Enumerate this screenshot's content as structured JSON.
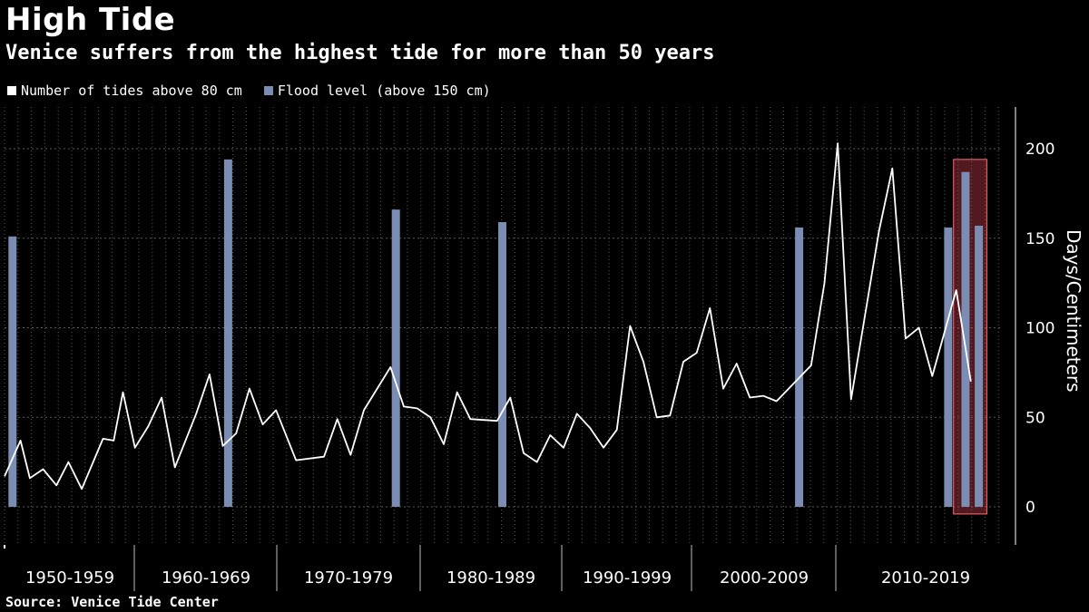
{
  "header": {
    "title": "High Tide",
    "subtitle": "Venice suffers from the highest tide for more than 50 years"
  },
  "legend": {
    "tides_label": "Number of tides above 80 cm",
    "flood_label": "Flood level (above 150 cm)"
  },
  "footer": {
    "source": "Source: Venice Tide Center"
  },
  "colors": {
    "background": "#000000",
    "line": "#ffffff",
    "bar": "#7b8db3",
    "highlight_fill": "#b5384a",
    "highlight_stroke": "#ff6f6f",
    "grid": "#5a5a5a"
  },
  "chart_data": {
    "type": "bar",
    "ylabel": "Days/Centimeters",
    "ylim": [
      -20,
      225
    ],
    "yticks": [
      0,
      50,
      100,
      150,
      200
    ],
    "decade_labels": [
      "1950-1959",
      "1960-1969",
      "1970-1979",
      "1980-1989",
      "1990-1999",
      "2000-2009",
      "2010-2019"
    ],
    "series": [
      {
        "name": "Number of tides above 80 cm",
        "type": "line",
        "points": [
          [
            1949.8,
            17
          ],
          [
            1951,
            37
          ],
          [
            1951.7,
            16
          ],
          [
            1952.7,
            21
          ],
          [
            1953.7,
            12
          ],
          [
            1954.6,
            25
          ],
          [
            1955.6,
            10
          ],
          [
            1957.2,
            38
          ],
          [
            1958,
            37
          ],
          [
            1958.7,
            64
          ],
          [
            1959.6,
            33
          ],
          [
            1960.6,
            45
          ],
          [
            1961.6,
            61
          ],
          [
            1962.6,
            22
          ],
          [
            1964.2,
            52
          ],
          [
            1965.2,
            74
          ],
          [
            1966.2,
            34
          ],
          [
            1967.2,
            41
          ],
          [
            1968.2,
            66
          ],
          [
            1969.2,
            46
          ],
          [
            1970.2,
            54
          ],
          [
            1971.7,
            26
          ],
          [
            1973.8,
            28
          ],
          [
            1974.8,
            49
          ],
          [
            1975.8,
            29
          ],
          [
            1976.8,
            54
          ],
          [
            1978.8,
            78
          ],
          [
            1979.8,
            56
          ],
          [
            1980.8,
            55
          ],
          [
            1981.8,
            50
          ],
          [
            1982.8,
            35
          ],
          [
            1983.8,
            64
          ],
          [
            1984.8,
            49
          ],
          [
            1986.8,
            48
          ],
          [
            1987.8,
            61
          ],
          [
            1988.8,
            30
          ],
          [
            1989.8,
            25
          ],
          [
            1990.8,
            40
          ],
          [
            1991.8,
            33
          ],
          [
            1992.8,
            52
          ],
          [
            1993.8,
            44
          ],
          [
            1994.8,
            33
          ],
          [
            1995.8,
            43
          ],
          [
            1996.8,
            101
          ],
          [
            1997.8,
            81
          ],
          [
            1998.8,
            50
          ],
          [
            1999.8,
            51
          ],
          [
            2000.8,
            81
          ],
          [
            2001.8,
            86
          ],
          [
            2002.8,
            111
          ],
          [
            2003.8,
            66
          ],
          [
            2004.8,
            80
          ],
          [
            2005.8,
            61
          ],
          [
            2006.8,
            62
          ],
          [
            2007.8,
            59
          ],
          [
            2010.4,
            79
          ],
          [
            2011.4,
            125
          ],
          [
            2012.4,
            203
          ],
          [
            2013.4,
            60
          ],
          [
            2015.5,
            154
          ],
          [
            2016.5,
            189
          ],
          [
            2017.5,
            94
          ],
          [
            2018.5,
            100
          ],
          [
            2019.5,
            73
          ],
          [
            2021.3,
            121
          ],
          [
            2022.4,
            70
          ]
        ]
      },
      {
        "name": "Flood level (above 150 cm)",
        "type": "bar",
        "points": [
          [
            1950.4,
            151
          ],
          [
            1966.6,
            194
          ],
          [
            1979.2,
            166
          ],
          [
            1987.2,
            159
          ],
          [
            2009.5,
            156
          ],
          [
            2020.7,
            156
          ],
          [
            2022,
            187
          ],
          [
            2023,
            157
          ]
        ]
      }
    ],
    "highlight": {
      "x_range": [
        2021.1,
        2023.6
      ],
      "y_range": [
        -4,
        194
      ]
    }
  }
}
